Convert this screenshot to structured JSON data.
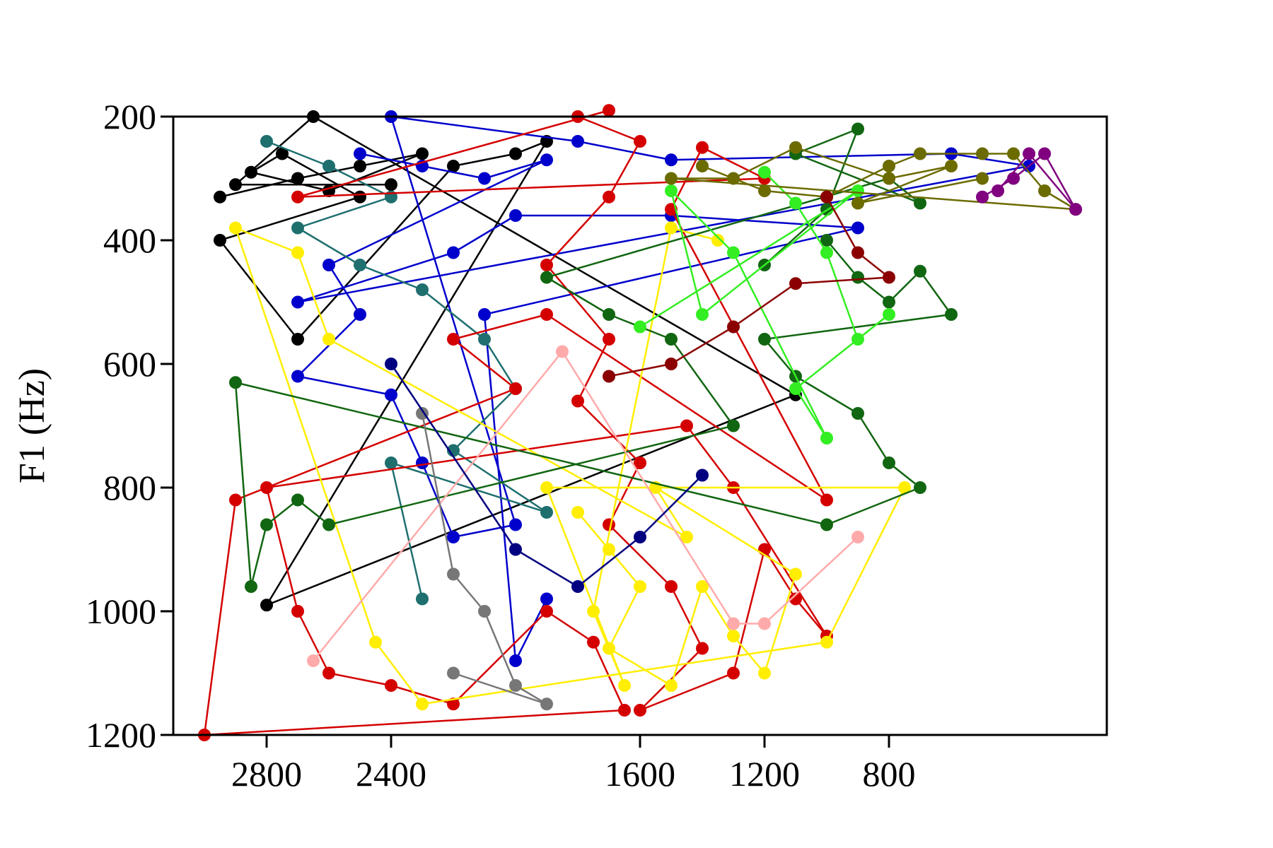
{
  "chart_data": {
    "type": "scatter",
    "title": "",
    "xlabel": "",
    "ylabel": "F1 (Hz)",
    "x_reversed": true,
    "y_reversed": true,
    "xlim": [
      3100,
      100
    ],
    "ylim": [
      200,
      1200
    ],
    "x_ticks": [
      {
        "value": 2800,
        "label": "2800"
      },
      {
        "value": 2400,
        "label": "2400"
      },
      {
        "value": 1600,
        "label": "1600"
      },
      {
        "value": 1200,
        "label": "1200"
      },
      {
        "value": 800,
        "label": "800"
      }
    ],
    "y_ticks": [
      {
        "value": 200,
        "label": "200"
      },
      {
        "value": 400,
        "label": "400"
      },
      {
        "value": 600,
        "label": "600"
      },
      {
        "value": 800,
        "label": "800"
      },
      {
        "value": 1000,
        "label": "1000"
      },
      {
        "value": 1200,
        "label": "1200"
      }
    ],
    "grid": false,
    "legend": "none",
    "series": [
      {
        "color": "#000000",
        "points": [
          [
            2950,
            330
          ],
          [
            2700,
            300
          ],
          [
            2500,
            280
          ],
          [
            2300,
            260
          ],
          [
            2600,
            320
          ],
          [
            2850,
            290
          ],
          [
            2750,
            260
          ],
          [
            2500,
            330
          ],
          [
            2950,
            400
          ],
          [
            2700,
            560
          ],
          [
            2200,
            280
          ],
          [
            2000,
            260
          ],
          [
            1900,
            240
          ],
          [
            2800,
            990
          ],
          [
            1100,
            650
          ],
          [
            2650,
            200
          ],
          [
            2900,
            310
          ],
          [
            2400,
            310
          ]
        ]
      },
      {
        "color": "#0000cc",
        "points": [
          [
            2500,
            260
          ],
          [
            2300,
            280
          ],
          [
            2100,
            300
          ],
          [
            1900,
            270
          ],
          [
            2600,
            440
          ],
          [
            2500,
            520
          ],
          [
            2700,
            620
          ],
          [
            2400,
            650
          ],
          [
            2300,
            760
          ],
          [
            2200,
            880
          ],
          [
            2000,
            860
          ],
          [
            2400,
            200
          ],
          [
            1800,
            240
          ],
          [
            1500,
            270
          ],
          [
            600,
            260
          ],
          [
            350,
            280
          ],
          [
            2700,
            500
          ],
          [
            2200,
            420
          ],
          [
            2000,
            360
          ],
          [
            1500,
            360
          ],
          [
            900,
            380
          ],
          [
            2100,
            520
          ],
          [
            2000,
            1080
          ],
          [
            1900,
            980
          ]
        ]
      },
      {
        "color": "#1f6f6f",
        "points": [
          [
            2800,
            240
          ],
          [
            2600,
            280
          ],
          [
            2400,
            330
          ],
          [
            2700,
            380
          ],
          [
            2500,
            440
          ],
          [
            2300,
            480
          ],
          [
            2100,
            560
          ],
          [
            2000,
            640
          ],
          [
            2200,
            740
          ],
          [
            1900,
            840
          ],
          [
            2400,
            760
          ],
          [
            2300,
            980
          ]
        ]
      },
      {
        "color": "#d40000",
        "points": [
          [
            1800,
            200
          ],
          [
            1600,
            240
          ],
          [
            1700,
            330
          ],
          [
            1900,
            440
          ],
          [
            1700,
            560
          ],
          [
            1800,
            660
          ],
          [
            1600,
            760
          ],
          [
            1700,
            860
          ],
          [
            1500,
            960
          ],
          [
            1400,
            1060
          ],
          [
            1600,
            1160
          ],
          [
            1300,
            1100
          ],
          [
            1200,
            900
          ],
          [
            1100,
            980
          ],
          [
            1000,
            1040
          ],
          [
            1300,
            800
          ],
          [
            1450,
            700
          ],
          [
            2800,
            800
          ],
          [
            2700,
            1000
          ],
          [
            2600,
            1100
          ],
          [
            2400,
            1120
          ],
          [
            2200,
            1150
          ],
          [
            1900,
            1000
          ],
          [
            1750,
            1050
          ],
          [
            1650,
            1160
          ],
          [
            3000,
            1200
          ],
          [
            2900,
            820
          ],
          [
            2000,
            640
          ],
          [
            2200,
            560
          ],
          [
            1900,
            520
          ],
          [
            1000,
            820
          ],
          [
            1500,
            350
          ],
          [
            1400,
            250
          ],
          [
            1200,
            300
          ],
          [
            2700,
            330
          ],
          [
            1700,
            190
          ]
        ]
      },
      {
        "color": "#ffee00",
        "points": [
          [
            1800,
            840
          ],
          [
            1700,
            900
          ],
          [
            1600,
            960
          ],
          [
            1700,
            1060
          ],
          [
            1500,
            1120
          ],
          [
            1400,
            960
          ],
          [
            1300,
            1040
          ],
          [
            1200,
            1100
          ],
          [
            1100,
            940
          ],
          [
            1550,
            800
          ],
          [
            1450,
            880
          ],
          [
            2600,
            560
          ],
          [
            2700,
            420
          ],
          [
            2900,
            380
          ],
          [
            2450,
            1050
          ],
          [
            2300,
            1150
          ],
          [
            1000,
            1050
          ],
          [
            750,
            800
          ],
          [
            1900,
            800
          ],
          [
            1650,
            1120
          ],
          [
            1750,
            1000
          ],
          [
            1500,
            380
          ],
          [
            1350,
            400
          ]
        ]
      },
      {
        "color": "#116611",
        "points": [
          [
            1000,
            400
          ],
          [
            900,
            460
          ],
          [
            800,
            500
          ],
          [
            700,
            450
          ],
          [
            600,
            520
          ],
          [
            1200,
            560
          ],
          [
            1100,
            620
          ],
          [
            900,
            680
          ],
          [
            800,
            760
          ],
          [
            700,
            800
          ],
          [
            1000,
            860
          ],
          [
            2900,
            630
          ],
          [
            2850,
            960
          ],
          [
            2800,
            860
          ],
          [
            2700,
            820
          ],
          [
            2600,
            860
          ],
          [
            1300,
            700
          ],
          [
            1500,
            560
          ],
          [
            1700,
            520
          ],
          [
            1900,
            460
          ],
          [
            800,
            300
          ],
          [
            700,
            340
          ],
          [
            1100,
            260
          ],
          [
            900,
            220
          ],
          [
            1000,
            350
          ],
          [
            1200,
            440
          ]
        ]
      },
      {
        "color": "#33ee22",
        "points": [
          [
            1200,
            290
          ],
          [
            1100,
            340
          ],
          [
            1000,
            420
          ],
          [
            900,
            560
          ],
          [
            800,
            520
          ],
          [
            1100,
            640
          ],
          [
            1000,
            720
          ],
          [
            1300,
            420
          ],
          [
            1500,
            320
          ],
          [
            1400,
            520
          ],
          [
            900,
            320
          ],
          [
            1600,
            540
          ]
        ]
      },
      {
        "color": "#6b6b00",
        "points": [
          [
            1400,
            280
          ],
          [
            1200,
            320
          ],
          [
            1000,
            330
          ],
          [
            800,
            280
          ],
          [
            700,
            260
          ],
          [
            500,
            260
          ],
          [
            400,
            260
          ],
          [
            300,
            320
          ],
          [
            200,
            350
          ],
          [
            1500,
            300
          ],
          [
            1300,
            300
          ],
          [
            1100,
            250
          ],
          [
            800,
            300
          ],
          [
            600,
            280
          ],
          [
            900,
            340
          ],
          [
            500,
            300
          ]
        ]
      },
      {
        "color": "#800080",
        "points": [
          [
            500,
            330
          ],
          [
            400,
            300
          ],
          [
            300,
            260
          ],
          [
            200,
            350
          ],
          [
            350,
            260
          ],
          [
            450,
            320
          ]
        ]
      },
      {
        "color": "#8b0000",
        "points": [
          [
            1000,
            330
          ],
          [
            900,
            420
          ],
          [
            800,
            460
          ],
          [
            1100,
            470
          ],
          [
            1300,
            540
          ],
          [
            1500,
            600
          ],
          [
            1700,
            620
          ]
        ]
      },
      {
        "color": "#ffaaaa",
        "points": [
          [
            2650,
            1080
          ],
          [
            1850,
            580
          ],
          [
            1300,
            1020
          ],
          [
            1200,
            1020
          ],
          [
            900,
            880
          ]
        ]
      },
      {
        "color": "#777777",
        "points": [
          [
            2300,
            680
          ],
          [
            2200,
            940
          ],
          [
            2100,
            1000
          ],
          [
            2000,
            1120
          ],
          [
            1900,
            1150
          ],
          [
            2200,
            1100
          ]
        ]
      },
      {
        "color": "#000080",
        "points": [
          [
            2400,
            600
          ],
          [
            2000,
            900
          ],
          [
            1800,
            960
          ],
          [
            1600,
            880
          ],
          [
            1400,
            780
          ]
        ]
      }
    ]
  }
}
